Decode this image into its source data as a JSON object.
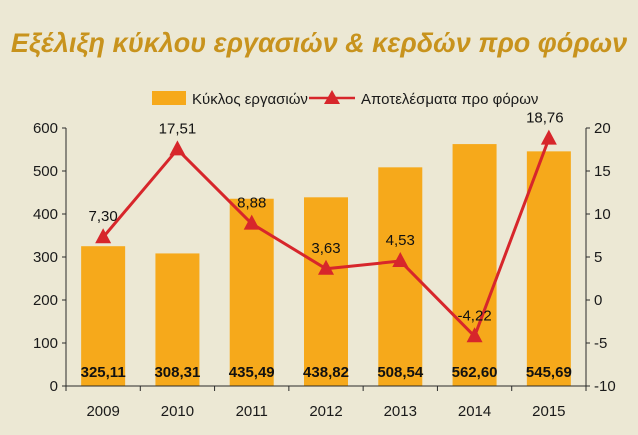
{
  "chart_data": {
    "type": "bar",
    "title": "Εξέλιξη κύκλου εργασιών & κερδών προ φόρων",
    "categories": [
      "2009",
      "2010",
      "2011",
      "2012",
      "2013",
      "2014",
      "2015"
    ],
    "series": [
      {
        "name": "Κύκλος εργασιών",
        "type": "bar",
        "axis": "left",
        "values": [
          325.11,
          308.31,
          435.49,
          438.82,
          508.54,
          562.6,
          545.69
        ],
        "labels": [
          "325,11",
          "308,31",
          "435,49",
          "438,82",
          "508,54",
          "562,60",
          "545,69"
        ],
        "color": "#f6a91b"
      },
      {
        "name": "Αποτελέσματα προ φόρων",
        "type": "line",
        "axis": "right",
        "values": [
          7.3,
          17.51,
          8.88,
          3.63,
          4.53,
          -4.22,
          18.76
        ],
        "labels": [
          "7,30",
          "17,51",
          "8,88",
          "3,63",
          "4,53",
          "-4,22",
          "18,76"
        ],
        "color": "#d7262b"
      }
    ],
    "y_left": {
      "ylim": [
        0,
        600
      ],
      "ticks": [
        "0",
        "100",
        "200",
        "300",
        "400",
        "500",
        "600"
      ]
    },
    "y_right": {
      "ylim": [
        -10,
        20
      ],
      "ticks": [
        "-10",
        "-5",
        "0",
        "5",
        "10",
        "15",
        "20"
      ]
    },
    "legend_position": "top",
    "grid": false
  },
  "colors": {
    "background": "#ece8d4",
    "title": "#c8931d",
    "axis": "#2a2a2a"
  }
}
